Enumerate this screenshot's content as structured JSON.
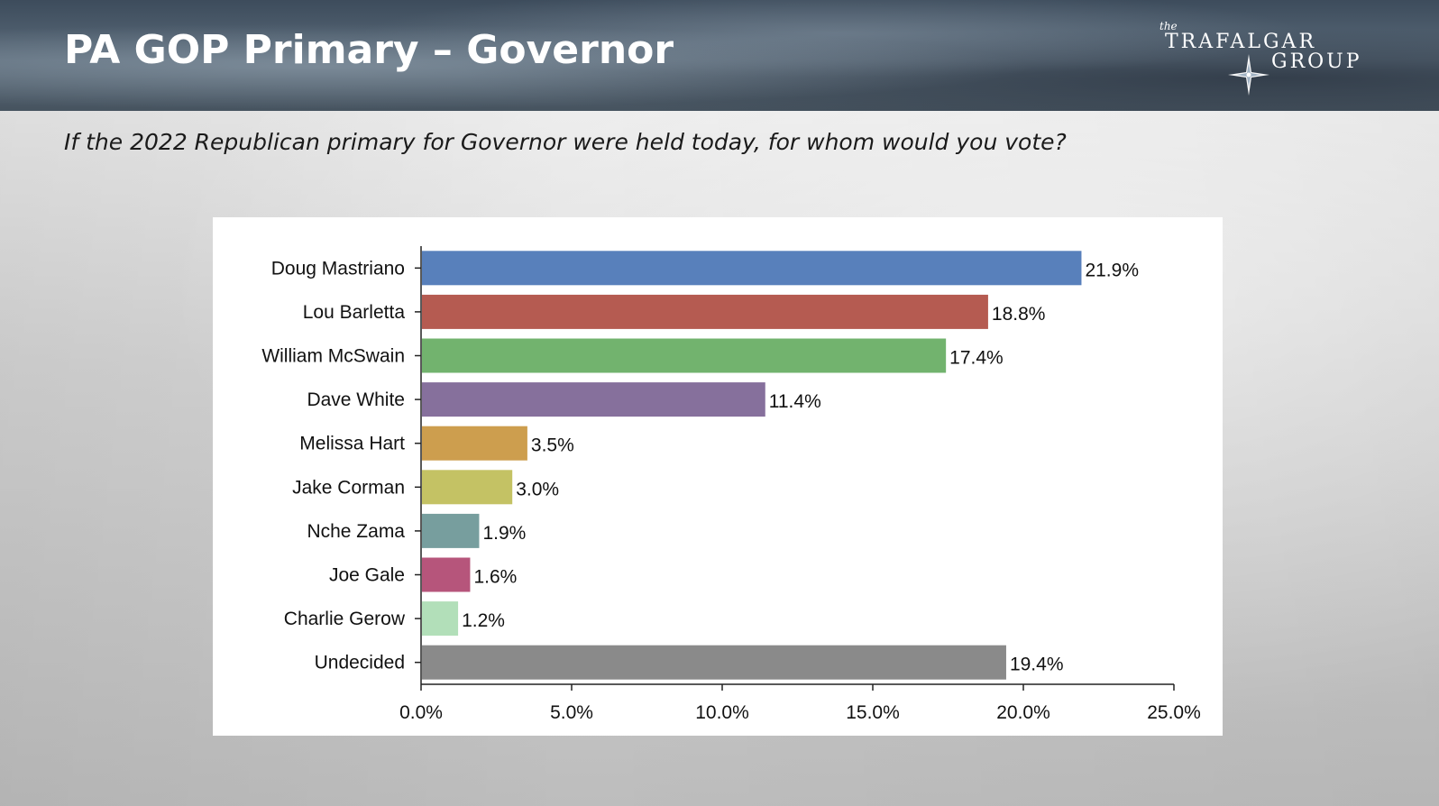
{
  "header": {
    "title": "PA GOP Primary – Governor",
    "logo": {
      "the": "the",
      "word1": "TRAFALGAR",
      "word2": "GROUP",
      "icon": "compass-star-icon"
    }
  },
  "subtitle": "If the 2022 Republican primary for Governor were held today, for whom would you vote?",
  "chart_data": {
    "type": "bar",
    "orientation": "horizontal",
    "title": "",
    "xlabel": "",
    "ylabel": "",
    "categories": [
      "Doug Mastriano",
      "Lou Barletta",
      "William McSwain",
      "Dave White",
      "Melissa Hart",
      "Jake Corman",
      "Nche Zama",
      "Joe Gale",
      "Charlie Gerow",
      "Undecided"
    ],
    "values": [
      21.9,
      18.8,
      17.4,
      11.4,
      3.5,
      3.0,
      1.9,
      1.6,
      1.2,
      19.4
    ],
    "data_labels": [
      "21.9%",
      "18.8%",
      "17.4%",
      "11.4%",
      "3.5%",
      "3.0%",
      "1.9%",
      "1.6%",
      "1.2%",
      "19.4%"
    ],
    "colors": [
      "#5880bb",
      "#b55b51",
      "#72b36e",
      "#86709c",
      "#cd9e4e",
      "#c4c264",
      "#779e9e",
      "#b6557b",
      "#b2dfb9",
      "#8a8a8a"
    ],
    "xlim": [
      0,
      25
    ],
    "xticks": [
      0,
      5,
      10,
      15,
      20,
      25
    ],
    "xtick_labels": [
      "0.0%",
      "5.0%",
      "10.0%",
      "15.0%",
      "20.0%",
      "25.0%"
    ],
    "grid": false,
    "legend": "none"
  }
}
